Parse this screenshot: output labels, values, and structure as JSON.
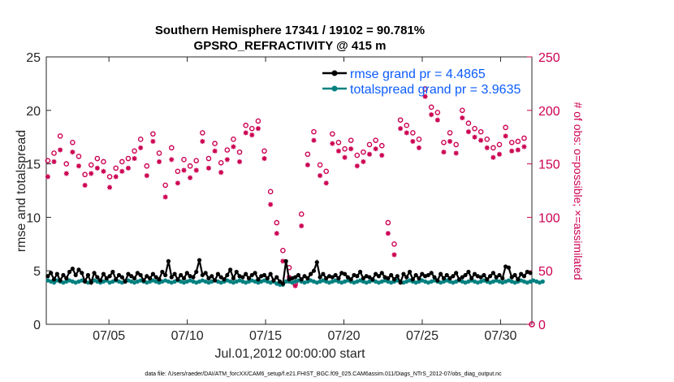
{
  "title_line1": "Southern Hemisphere 17341 / 19102 = 90.781%",
  "title_line2": "GPSRO_REFRACTIVITY @ 415 m",
  "footer": "data file: /Users/raeder/DAI/ATM_forcXX/CAM6_setup/f.e21.FHIST_BGC.f09_025.CAM6assim.011/Diags_NTrS_2012-07/obs_diag_output.nc",
  "colors": {
    "rmse": "#000000",
    "spread": "#008080",
    "obs": "#cc0052",
    "legend_text": "#0b5cff"
  },
  "chart_data": {
    "type": "line",
    "title": "Southern Hemisphere 17341 / 19102 = 90.781%",
    "subtitle": "GPSRO_REFRACTIVITY @ 415 m",
    "xlabel": "Jul.01,2012 00:00:00 start",
    "ylabel": "rmse and totalspread",
    "y2label": "# of obs: o=possible; ×=assimilated",
    "xlim": [
      1,
      32
    ],
    "ylim": [
      0,
      25
    ],
    "y2lim": [
      0,
      250
    ],
    "xtick_values": [
      5,
      10,
      15,
      20,
      25,
      30
    ],
    "xtick_labels": [
      "07/05",
      "07/10",
      "07/15",
      "07/20",
      "07/25",
      "07/30"
    ],
    "ytick_labels": [
      "0",
      "5",
      "10",
      "15",
      "20",
      "25"
    ],
    "y2tick_labels": [
      "0",
      "50",
      "100",
      "150",
      "200",
      "250"
    ],
    "legend": [
      "rmse grand pr = 4.4865",
      "totalspread grand pr = 3.9635"
    ],
    "legend_placement": "top-right",
    "series": [
      {
        "name": "rmse",
        "axis": "left",
        "values": [
          4.5,
          4.8,
          4.2,
          4.7,
          4.1,
          4.6,
          4.3,
          4.9,
          5.2,
          4.6,
          5.1,
          4.8,
          4.0,
          4.6,
          3.9,
          4.8,
          4.4,
          4.1,
          4.7,
          4.3,
          4.5,
          4.9,
          4.2,
          4.6,
          4.4,
          4.0,
          4.7,
          4.5,
          4.3,
          4.8,
          4.6,
          4.1,
          4.5,
          4.3,
          4.7,
          4.4,
          4.2,
          4.9,
          4.6,
          5.9,
          4.4,
          4.7,
          4.2,
          4.6,
          4.3,
          4.8,
          4.5,
          4.4,
          4.9,
          6.0,
          4.6,
          4.8,
          4.3,
          4.5,
          4.1,
          4.7,
          4.4,
          4.2,
          4.6,
          5.1,
          4.3,
          4.9,
          4.5,
          4.4,
          4.7,
          4.3,
          4.6,
          4.8,
          4.2,
          4.5,
          4.6,
          4.3,
          4.7,
          4.1,
          4.4,
          4.0,
          3.8,
          5.9,
          4.2,
          4.3,
          4.4,
          4.6,
          4.2,
          4.5,
          4.3,
          4.7,
          5.0,
          5.8,
          4.4,
          4.7,
          4.3,
          4.5,
          4.4,
          4.6,
          4.3,
          4.8,
          4.7,
          4.4,
          4.2,
          4.6,
          4.5,
          4.9,
          4.3,
          4.5,
          4.4,
          4.2,
          4.7,
          4.5,
          4.8,
          4.4,
          4.3,
          4.6,
          4.2,
          4.5,
          3.9,
          4.7,
          4.4,
          4.9,
          4.2,
          4.6,
          4.3,
          4.7,
          4.5,
          4.6,
          4.8,
          4.4,
          4.1,
          4.7,
          4.3,
          4.6,
          4.3,
          4.5,
          4.8,
          4.2,
          4.4,
          4.6,
          4.9,
          4.3,
          4.7,
          4.5,
          4.4,
          4.6,
          4.2,
          4.5,
          4.8,
          4.4,
          4.6,
          4.3,
          5.4,
          5.3,
          4.4,
          4.6,
          4.2,
          4.7,
          4.5,
          4.9,
          4.8
        ]
      },
      {
        "name": "totalspread",
        "axis": "left",
        "values": [
          4.1,
          4.0,
          3.9,
          4.1,
          4.0,
          3.9,
          4.0,
          4.1,
          4.0,
          3.9,
          4.0,
          4.1,
          4.0,
          3.9,
          4.0,
          4.1,
          4.0,
          3.9,
          4.0,
          4.1,
          3.9,
          4.0,
          4.1,
          4.0,
          3.9,
          4.0,
          4.1,
          4.0,
          3.9,
          4.0,
          4.1,
          4.0,
          3.9,
          4.0,
          4.1,
          4.0,
          3.9,
          4.0,
          4.1,
          4.0,
          3.9,
          4.0,
          4.1,
          4.0,
          3.9,
          4.0,
          4.1,
          4.0,
          3.9,
          4.0,
          4.1,
          4.0,
          3.9,
          4.0,
          4.1,
          4.0,
          3.9,
          4.0,
          4.1,
          4.0,
          3.9,
          4.0,
          4.1,
          4.0,
          3.9,
          4.0,
          4.1,
          4.0,
          3.9,
          4.0,
          4.1,
          4.0,
          3.9,
          4.0,
          3.8,
          3.7,
          3.7,
          4.0,
          4.0,
          3.9,
          4.0,
          4.1,
          4.0,
          3.9,
          4.0,
          4.1,
          4.0,
          3.9,
          4.0,
          4.1,
          4.0,
          3.9,
          4.0,
          4.1,
          4.0,
          3.9,
          4.0,
          4.1,
          4.0,
          3.9,
          4.0,
          4.1,
          4.0,
          3.9,
          4.0,
          4.1,
          4.0,
          3.9,
          4.0,
          4.1,
          4.0,
          3.9,
          4.0,
          4.1,
          4.0,
          3.9,
          4.0,
          4.1,
          4.0,
          3.9,
          4.0,
          4.1,
          4.0,
          3.9,
          4.0,
          4.1,
          4.0,
          3.9,
          4.0,
          4.1,
          4.0,
          3.9,
          4.0,
          4.1,
          4.0,
          3.9,
          4.0,
          4.1,
          4.0,
          3.9,
          4.0,
          4.1,
          4.0,
          3.9,
          4.0,
          4.1,
          4.0,
          3.9,
          4.0,
          4.1,
          4.0,
          3.9,
          4.0,
          4.1,
          4.0,
          3.9,
          4.0,
          4.1,
          4.0,
          3.9,
          4.0
        ]
      },
      {
        "name": "obs possible",
        "axis": "right",
        "marker": "o",
        "values": [
          153,
          130,
          160,
          152,
          176,
          162,
          150,
          169,
          170,
          135,
          157,
          163,
          140,
          147,
          149,
          160,
          155,
          171,
          152,
          159,
          138,
          165,
          146,
          148,
          152,
          172,
          155,
          154,
          162,
          154,
          173,
          158,
          148,
          145,
          178,
          146,
          160,
          138,
          130,
          155,
          165,
          154,
          143,
          166,
          154,
          159,
          148,
          166,
          153,
          141,
          179,
          155,
          155,
          149,
          169,
          134,
          151,
          177,
          163,
          157,
          173,
          166,
          161,
          165,
          186,
          158,
          183,
          184,
          190,
          143,
          162,
          147,
          124,
          108,
          95,
          80,
          69,
          60,
          53,
          46,
          38,
          80,
          103,
          180,
          159,
          142,
          180,
          158,
          149,
          167,
          143,
          188,
          178,
          158,
          170,
          150,
          164,
          155,
          172,
          163,
          158,
          165,
          161,
          185,
          168,
          187,
          172,
          152,
          167,
          172,
          95,
          80,
          75,
          70,
          191,
          180,
          186,
          175,
          179,
          176,
          173,
          157,
          220,
          206,
          203,
          186,
          198,
          175,
          170,
          185,
          179,
          159,
          168,
          196,
          200,
          198,
          188,
          172,
          183,
          189,
          180,
          175,
          173,
          170,
          165,
          166,
          168,
          174,
          184,
          175,
          170,
          172,
          171,
          172,
          174
        ]
      },
      {
        "name": "obs assimilated",
        "axis": "right",
        "marker": "*",
        "values": [
          138,
          120,
          152,
          142,
          163,
          153,
          141,
          162,
          161,
          124,
          148,
          157,
          130,
          137,
          141,
          152,
          146,
          164,
          143,
          151,
          128,
          156,
          138,
          139,
          143,
          162,
          146,
          146,
          155,
          145,
          165,
          150,
          139,
          134,
          171,
          135,
          152,
          127,
          119,
          145,
          154,
          146,
          132,
          157,
          144,
          151,
          137,
          158,
          144,
          132,
          171,
          146,
          146,
          140,
          162,
          124,
          142,
          170,
          154,
          149,
          166,
          157,
          152,
          157,
          179,
          149,
          177,
          176,
          183,
          133,
          155,
          138,
          112,
          96,
          85,
          70,
          59,
          50,
          44,
          42,
          36,
          70,
          92,
          172,
          149,
          133,
          172,
          150,
          139,
          158,
          132,
          180,
          169,
          148,
          162,
          141,
          156,
          146,
          164,
          155,
          148,
          157,
          152,
          178,
          159,
          179,
          164,
          142,
          158,
          163,
          85,
          72,
          65,
          59,
          183,
          172,
          179,
          167,
          171,
          168,
          165,
          148,
          213,
          199,
          196,
          178,
          191,
          166,
          161,
          177,
          171,
          150,
          160,
          189,
          193,
          191,
          180,
          164,
          175,
          181,
          172,
          167,
          165,
          162,
          156,
          157,
          159,
          166,
          176,
          167,
          162,
          164,
          163,
          165,
          166
        ]
      }
    ]
  }
}
